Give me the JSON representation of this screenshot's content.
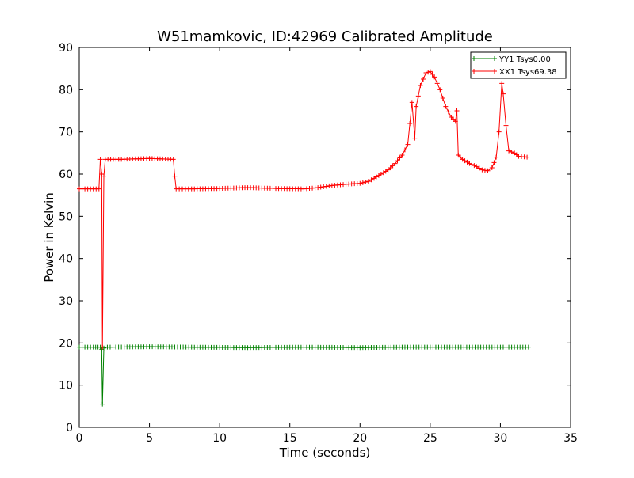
{
  "chart_data": {
    "type": "line",
    "title": "W51mamkovic, ID:42969 Calibrated Amplitude",
    "xlabel": "Time (seconds)",
    "ylabel": "Power in Kelvin",
    "xlim": [
      0,
      35
    ],
    "ylim": [
      0,
      90
    ],
    "xticks": [
      0,
      5,
      10,
      15,
      20,
      25,
      30,
      35
    ],
    "yticks": [
      0,
      10,
      20,
      30,
      40,
      50,
      60,
      70,
      80,
      90
    ],
    "grid": false,
    "legend_position": "top-right",
    "marker": "+",
    "series": [
      {
        "name": "YY1 Tsys0.00",
        "color": "#008000",
        "points": [
          [
            0.0,
            19.0
          ],
          [
            1.0,
            19.0
          ],
          [
            1.5,
            19.0
          ],
          [
            1.6,
            18.5
          ],
          [
            1.65,
            5.5
          ],
          [
            1.75,
            18.8
          ],
          [
            2.0,
            19.0
          ],
          [
            5.0,
            19.1
          ],
          [
            8.0,
            19.0
          ],
          [
            12.0,
            18.9
          ],
          [
            16.0,
            19.0
          ],
          [
            20.0,
            18.9
          ],
          [
            23.0,
            19.0
          ],
          [
            26.0,
            19.0
          ],
          [
            29.0,
            19.0
          ],
          [
            32.0,
            19.0
          ]
        ]
      },
      {
        "name": "XX1 Tsys69.38",
        "color": "#ff0000",
        "points": [
          [
            0.0,
            56.5
          ],
          [
            1.4,
            56.5
          ],
          [
            1.5,
            63.5
          ],
          [
            1.6,
            60.0
          ],
          [
            1.65,
            19.0
          ],
          [
            1.75,
            59.5
          ],
          [
            1.85,
            63.5
          ],
          [
            3.0,
            63.5
          ],
          [
            5.0,
            63.7
          ],
          [
            6.7,
            63.5
          ],
          [
            6.8,
            59.5
          ],
          [
            6.9,
            56.5
          ],
          [
            8.0,
            56.5
          ],
          [
            10.0,
            56.6
          ],
          [
            12.0,
            56.8
          ],
          [
            14.0,
            56.6
          ],
          [
            16.0,
            56.5
          ],
          [
            17.0,
            56.8
          ],
          [
            18.0,
            57.3
          ],
          [
            19.0,
            57.6
          ],
          [
            20.0,
            57.8
          ],
          [
            20.6,
            58.3
          ],
          [
            21.0,
            59.0
          ],
          [
            21.5,
            60.0
          ],
          [
            22.0,
            61.0
          ],
          [
            22.5,
            62.5
          ],
          [
            23.0,
            64.5
          ],
          [
            23.4,
            67.0
          ],
          [
            23.7,
            77.0
          ],
          [
            23.9,
            68.5
          ],
          [
            24.0,
            76.0
          ],
          [
            24.3,
            81.0
          ],
          [
            24.7,
            84.0
          ],
          [
            25.0,
            84.3
          ],
          [
            25.3,
            83.0
          ],
          [
            25.7,
            80.0
          ],
          [
            26.1,
            76.0
          ],
          [
            26.5,
            73.5
          ],
          [
            26.8,
            72.5
          ],
          [
            26.9,
            75.0
          ],
          [
            27.0,
            64.5
          ],
          [
            27.3,
            63.5
          ],
          [
            27.8,
            62.5
          ],
          [
            28.3,
            61.8
          ],
          [
            28.7,
            61.0
          ],
          [
            29.1,
            60.8
          ],
          [
            29.4,
            61.5
          ],
          [
            29.7,
            64.0
          ],
          [
            29.9,
            70.0
          ],
          [
            30.1,
            81.5
          ],
          [
            30.2,
            79.0
          ],
          [
            30.4,
            71.5
          ],
          [
            30.6,
            65.5
          ],
          [
            31.0,
            65.0
          ],
          [
            31.3,
            64.2
          ],
          [
            31.9,
            64.0
          ]
        ]
      }
    ]
  }
}
